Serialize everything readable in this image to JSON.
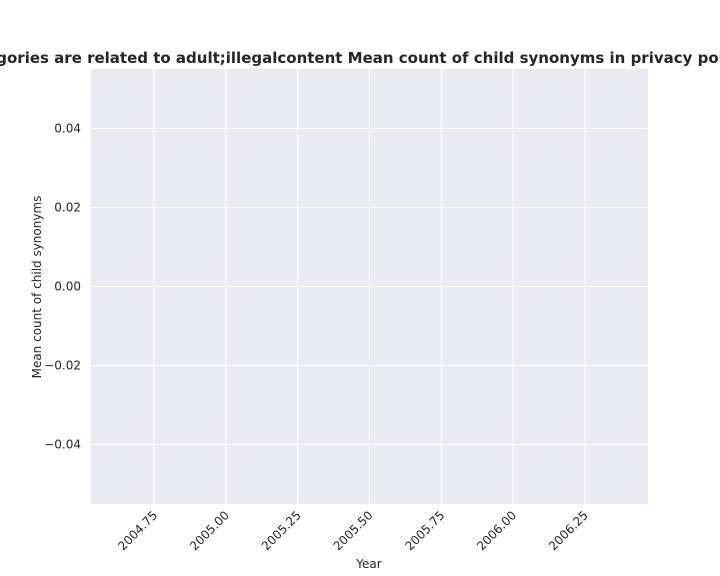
{
  "chart_data": {
    "type": "line",
    "title": "categories are related to adult;illegalcontent Mean count of child synonyms in privacy policies",
    "xlabel": "Year",
    "ylabel": "Mean count of child synonyms",
    "xlim": [
      2004.53,
      2006.47
    ],
    "ylim": [
      -0.055,
      0.055
    ],
    "x_ticks": [
      2004.75,
      2005.0,
      2005.25,
      2005.5,
      2005.75,
      2006.0,
      2006.25
    ],
    "x_tick_labels": [
      "2004.75",
      "2005.00",
      "2005.25",
      "2005.50",
      "2005.75",
      "2006.00",
      "2006.25"
    ],
    "y_ticks": [
      -0.04,
      -0.02,
      0.0,
      0.02,
      0.04
    ],
    "y_tick_labels": [
      "−0.04",
      "−0.02",
      "0.00",
      "0.02",
      "0.04"
    ],
    "grid": true,
    "series": [],
    "colors": {
      "plot_background": "#EAEAF2",
      "grid": "#FFFFFF",
      "text": "#262626"
    }
  }
}
